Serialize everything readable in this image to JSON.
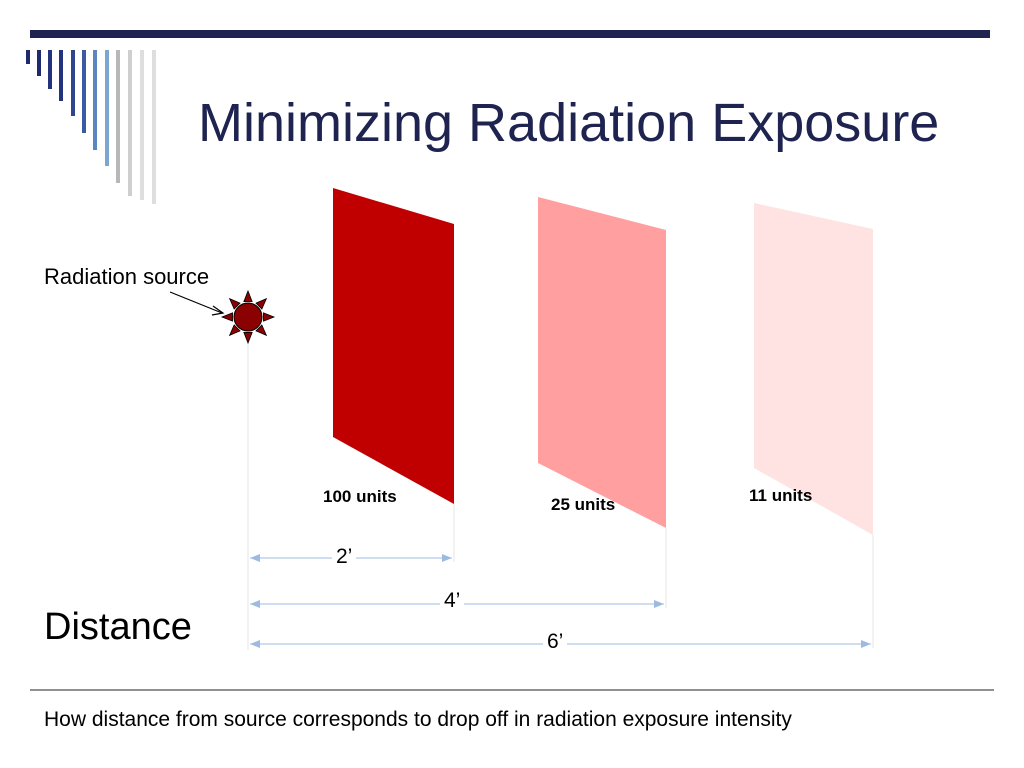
{
  "slide": {
    "title": "Minimizing Radiation Exposure",
    "source_label": "Radiation source",
    "distance_label": "Distance",
    "caption": "How distance from source corresponds to drop off in radiation exposure intensity"
  },
  "panels": [
    {
      "label": "100 units",
      "color": "#c00000"
    },
    {
      "label": "25 units",
      "color": "#ff9f9f"
    },
    {
      "label": "11 units",
      "color": "#ffe3e3"
    }
  ],
  "distances": [
    {
      "label": "2’"
    },
    {
      "label": "4’"
    },
    {
      "label": "6’"
    }
  ],
  "colors": {
    "title": "#1f2350",
    "top_rule": "#1f2350",
    "source": "#8b0000",
    "dimension_line": "#9dbbe0",
    "deco_bars": [
      "#1f2a6e",
      "#24337e",
      "#2e4590",
      "#3b5aa3",
      "#5a87c0",
      "#7ba6d2",
      "#b8b8b8",
      "#cfcfcf",
      "#dedede"
    ]
  },
  "icons": {
    "source": "sun-icon"
  }
}
